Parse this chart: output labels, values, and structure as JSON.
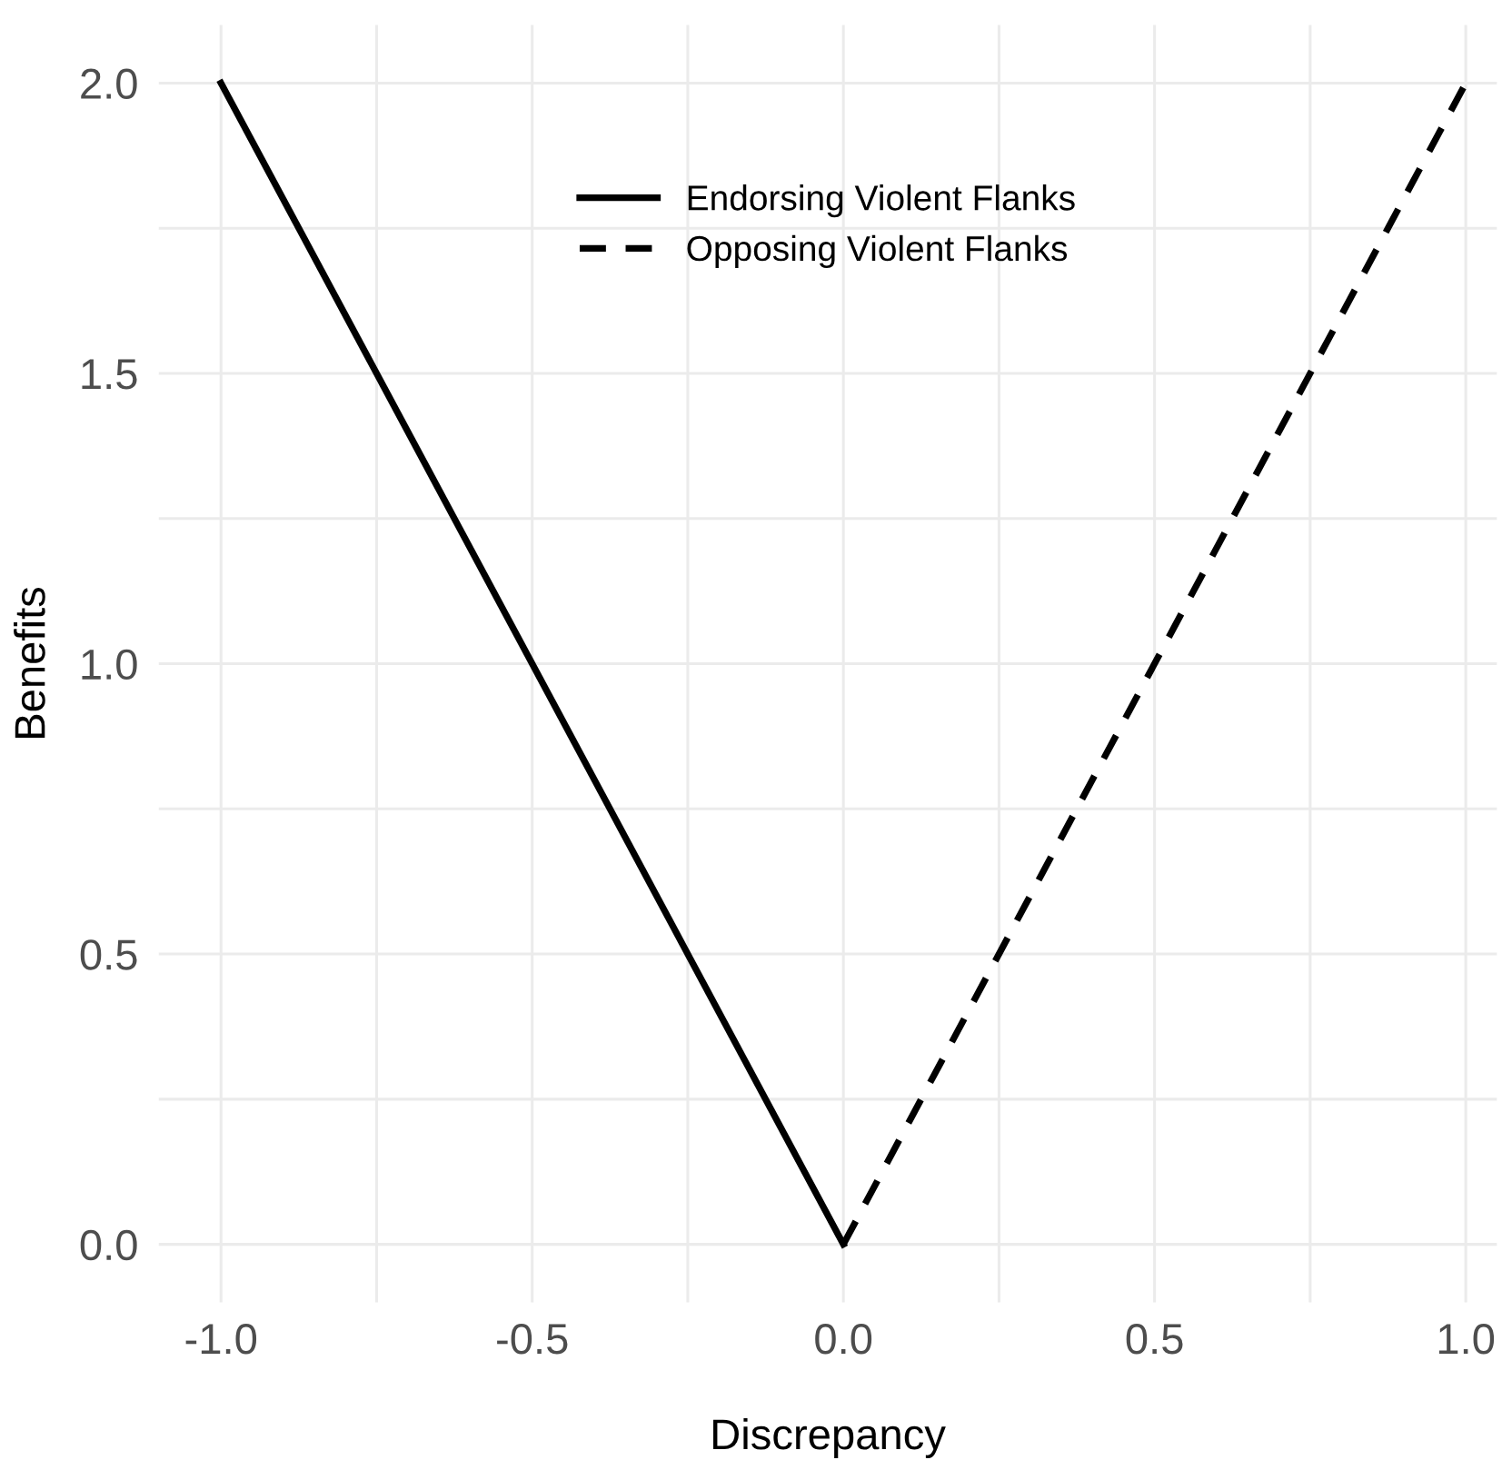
{
  "chart_data": {
    "type": "line",
    "xlabel": "Discrepancy",
    "ylabel": "Benefits",
    "series": [
      {
        "name": "Endorsing Violent Flanks",
        "color": "#000000",
        "x": [
          -1,
          0
        ],
        "values": [
          2,
          0
        ],
        "line_style": "solid"
      },
      {
        "name": "Opposing Violent Flanks",
        "color": "#000000",
        "x": [
          0,
          1
        ],
        "values": [
          0,
          2
        ],
        "line_style": "dashed"
      }
    ],
    "xlim": [
      -1.1,
      1.05
    ],
    "ylim": [
      -0.1,
      2.1
    ],
    "xticks": [
      {
        "value": -1,
        "label": "-1.0"
      },
      {
        "value": -0.75,
        "label": null
      },
      {
        "value": -0.5,
        "label": "-0.5"
      },
      {
        "value": -0.25,
        "label": null
      },
      {
        "value": 0,
        "label": "0.0"
      },
      {
        "value": 0.25,
        "label": null
      },
      {
        "value": 0.5,
        "label": "0.5"
      },
      {
        "value": 0.75,
        "label": null
      },
      {
        "value": 1,
        "label": "1.0"
      }
    ],
    "yticks": [
      {
        "value": 0,
        "label": "0.0"
      },
      {
        "value": 0.25,
        "label": null
      },
      {
        "value": 0.5,
        "label": "0.5"
      },
      {
        "value": 0.75,
        "label": null
      },
      {
        "value": 1,
        "label": "1.0"
      },
      {
        "value": 1.25,
        "label": null
      },
      {
        "value": 1.5,
        "label": "1.5"
      },
      {
        "value": 1.75,
        "label": null
      },
      {
        "value": 2,
        "label": "2.0"
      }
    ],
    "grid": true,
    "legend": "top",
    "marker": "none"
  }
}
